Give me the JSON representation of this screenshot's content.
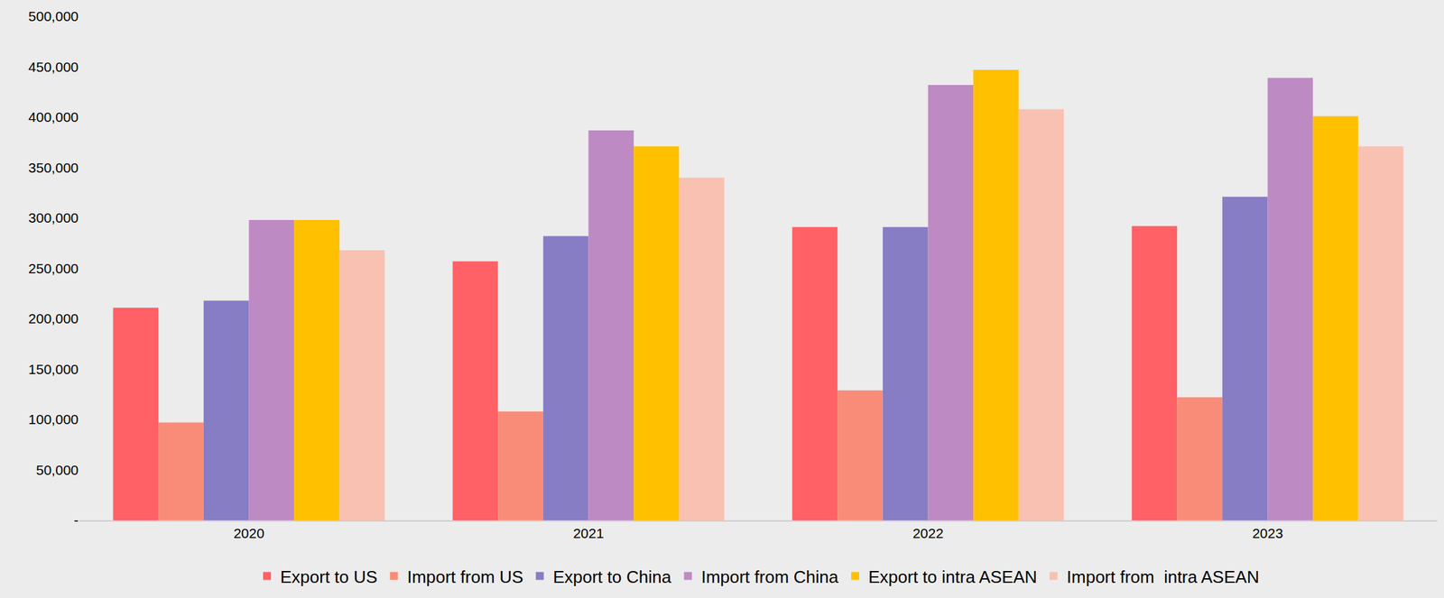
{
  "chart_data": {
    "type": "bar",
    "categories": [
      "2020",
      "2021",
      "2022",
      "2023"
    ],
    "series": [
      {
        "name": "Export to US",
        "color": "#ff6166",
        "values": [
          211000,
          257000,
          291000,
          292000
        ]
      },
      {
        "name": "Import from US",
        "color": "#f98c78",
        "values": [
          97000,
          108000,
          129000,
          122000
        ]
      },
      {
        "name": "Export to China",
        "color": "#877dc4",
        "values": [
          218000,
          282000,
          291000,
          321000
        ]
      },
      {
        "name": "Import from China",
        "color": "#be8ac4",
        "values": [
          298000,
          387000,
          432000,
          439000
        ]
      },
      {
        "name": "Export to intra ASEAN",
        "color": "#ffc000",
        "values": [
          298000,
          371000,
          447000,
          401000
        ]
      },
      {
        "name": "Import from  intra ASEAN",
        "color": "#f9c1b1",
        "values": [
          268000,
          340000,
          408000,
          371000
        ]
      }
    ],
    "ylim": [
      0,
      500000
    ],
    "yticks": [
      {
        "value": 0,
        "label": "-"
      },
      {
        "value": 50000,
        "label": "50,000"
      },
      {
        "value": 100000,
        "label": "100,000"
      },
      {
        "value": 150000,
        "label": "150,000"
      },
      {
        "value": 200000,
        "label": "200,000"
      },
      {
        "value": 250000,
        "label": "250,000"
      },
      {
        "value": 300000,
        "label": "300,000"
      },
      {
        "value": 350000,
        "label": "350,000"
      },
      {
        "value": 400000,
        "label": "400,000"
      },
      {
        "value": 450000,
        "label": "450,000"
      },
      {
        "value": 500000,
        "label": "500,000"
      }
    ],
    "grid": false,
    "legend": "bottom"
  }
}
